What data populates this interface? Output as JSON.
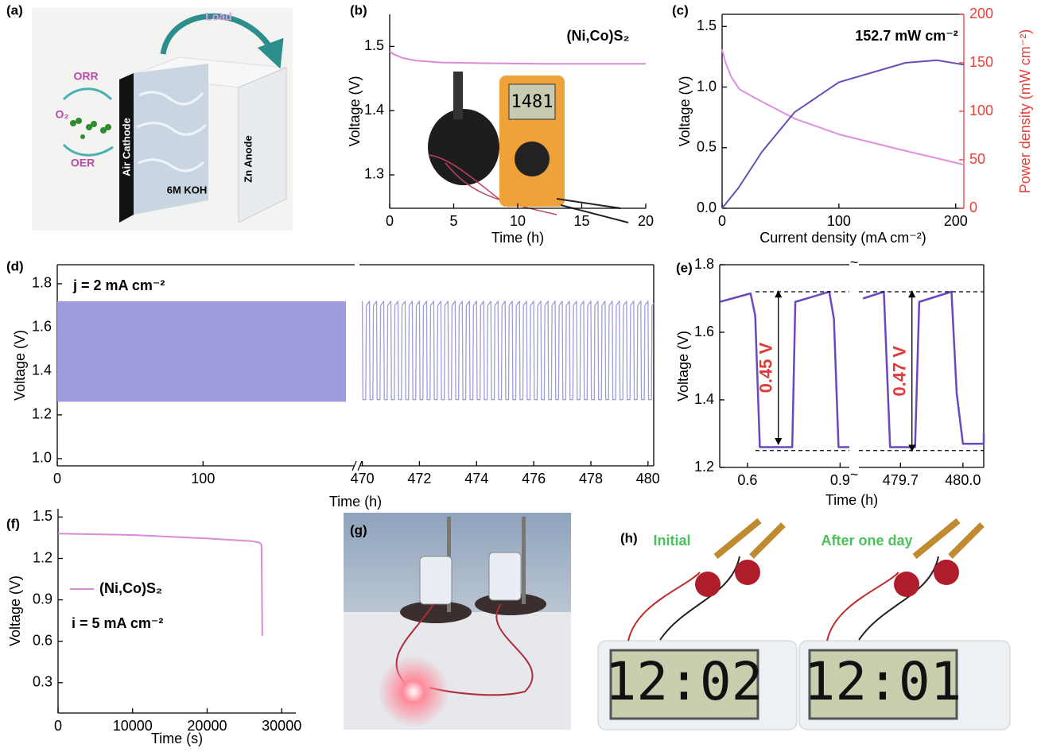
{
  "chart_data": [
    {
      "type": "line",
      "panel_label": "(b)",
      "xlabel": "Time (h)",
      "ylabel": "Voltage (V)",
      "annotation": "(Ni,Co)S₂",
      "inset_text": "1481",
      "xlim": [
        0,
        20
      ],
      "xticks": [
        0,
        5,
        10,
        15,
        20
      ],
      "ylim": [
        1.248,
        1.55
      ],
      "yticks": [
        1.3,
        1.4,
        1.5
      ],
      "series": [
        {
          "color": "#d98bd6",
          "x": [
            0,
            0.3,
            1,
            2,
            4,
            7,
            12,
            20
          ],
          "values": [
            1.492,
            1.488,
            1.482,
            1.478,
            1.475,
            1.474,
            1.473,
            1.473
          ]
        }
      ]
    },
    {
      "type": "line",
      "panel_label": "(c)",
      "xlabel": "Current density (mA cm⁻²)",
      "ylabel": "Voltage (V)",
      "y2label": "Power density (mW cm⁻²)",
      "annotation": "152.7 mW cm⁻²",
      "xlim": [
        0,
        207
      ],
      "xticks": [
        0,
        100,
        200
      ],
      "ylim": [
        0,
        1.6
      ],
      "yticks": [
        {
          "value": 0,
          "label": "0.0"
        },
        0.5,
        {
          "value": 1,
          "label": "1.0"
        },
        1.5
      ],
      "y2lim": [
        0,
        200
      ],
      "y2ticks": [
        0,
        50,
        100,
        150,
        200
      ],
      "y2color": "#e8403a",
      "series": [
        {
          "color": "#e08ee0",
          "x": [
            0,
            3,
            8,
            15,
            30,
            62,
            100,
            150,
            207
          ],
          "values": [
            1.31,
            1.2,
            1.08,
            0.98,
            0.9,
            0.74,
            0.61,
            0.49,
            0.36
          ]
        },
        {
          "color": "#6a4bb8",
          "axis": "y2",
          "x": [
            0,
            14,
            34,
            62,
            100,
            157,
            184,
            207
          ],
          "values": [
            0,
            21,
            58,
            99,
            130,
            150,
            152.7,
            148
          ]
        }
      ]
    },
    {
      "type": "line",
      "panel_label": "(d)",
      "xlabel": "Time (h)",
      "ylabel": "Voltage (V)",
      "annotation": "j = 2 mA cm⁻²",
      "ylim": [
        0.967,
        1.887
      ],
      "yticks": [
        {
          "value": 1,
          "label": "1.0"
        },
        1.2,
        1.4,
        1.6,
        1.8
      ],
      "color": "#9e9cda",
      "segments": [
        {
          "xlim": [
            0,
            204
          ],
          "xticks": [
            0,
            100
          ],
          "band": {
            "x": [
              0,
              198
            ],
            "values": [
              1.26,
              1.72
            ]
          }
        },
        {
          "xlim": [
            469.9,
            480.2
          ],
          "xticks": [
            470,
            472,
            474,
            476,
            478,
            480
          ],
          "x": [
            470,
            470.02,
            470.12,
            470.14,
            470.25,
            470.27,
            470.37,
            470.39,
            470.5,
            470.52,
            470.62,
            470.64,
            470.75,
            470.77,
            470.87,
            470.89,
            471,
            471.02,
            471.12,
            471.14,
            471.25,
            471.27,
            471.37,
            471.39,
            471.5,
            471.52,
            471.62,
            471.64,
            471.75,
            471.77,
            471.87,
            471.89,
            472,
            472.02,
            472.12,
            472.14,
            472.25,
            472.27,
            472.37,
            472.39,
            472.5,
            472.52,
            472.62,
            472.64,
            472.75,
            472.77,
            472.87,
            472.89,
            473,
            473.02,
            473.12,
            473.14,
            473.25,
            473.27,
            473.37,
            473.39,
            473.5,
            473.52,
            473.62,
            473.64,
            473.75,
            473.77,
            473.87,
            473.89,
            474,
            474.02,
            474.12,
            474.14,
            474.25,
            474.27,
            474.37,
            474.39,
            474.5,
            474.52,
            474.62,
            474.64,
            474.75,
            474.77,
            474.87,
            474.89,
            475,
            475.02,
            475.12,
            475.14,
            475.25,
            475.27,
            475.37,
            475.39,
            475.5,
            475.52,
            475.62,
            475.64,
            475.75,
            475.77,
            475.87,
            475.89,
            476,
            476.02,
            476.12,
            476.14,
            476.25,
            476.27,
            476.37,
            476.39,
            476.5,
            476.52,
            476.62,
            476.64,
            476.75,
            476.77,
            476.87,
            476.89,
            477,
            477.02,
            477.12,
            477.14,
            477.25,
            477.27,
            477.37,
            477.39,
            477.5,
            477.52,
            477.62,
            477.64,
            477.75,
            477.77,
            477.87,
            477.89,
            478,
            478.02,
            478.12,
            478.14,
            478.25,
            478.27,
            478.37,
            478.39,
            478.5,
            478.52,
            478.62,
            478.64,
            478.75,
            478.77,
            478.87,
            478.89,
            479,
            479.02,
            479.12,
            479.14,
            479.25,
            479.27,
            479.37,
            479.39,
            479.5,
            479.52,
            479.62,
            479.64,
            479.75,
            479.77,
            479.87,
            479.89,
            480,
            480.02,
            480.12,
            480.14,
            480.2
          ],
          "values": [
            1.72,
            1.27,
            1.27,
            1.7,
            1.72,
            1.27,
            1.27,
            1.7,
            1.72,
            1.27,
            1.27,
            1.7,
            1.72,
            1.27,
            1.27,
            1.7,
            1.72,
            1.27,
            1.27,
            1.7,
            1.72,
            1.27,
            1.27,
            1.7,
            1.72,
            1.27,
            1.27,
            1.7,
            1.72,
            1.27,
            1.27,
            1.7,
            1.72,
            1.27,
            1.27,
            1.7,
            1.72,
            1.27,
            1.27,
            1.7,
            1.72,
            1.27,
            1.27,
            1.7,
            1.72,
            1.27,
            1.27,
            1.7,
            1.72,
            1.27,
            1.27,
            1.7,
            1.72,
            1.27,
            1.27,
            1.7,
            1.72,
            1.27,
            1.27,
            1.7,
            1.72,
            1.27,
            1.27,
            1.7,
            1.72,
            1.27,
            1.27,
            1.7,
            1.72,
            1.27,
            1.27,
            1.7,
            1.72,
            1.27,
            1.27,
            1.7,
            1.72,
            1.27,
            1.27,
            1.7,
            1.72,
            1.27,
            1.27,
            1.7,
            1.72,
            1.27,
            1.27,
            1.7,
            1.72,
            1.27,
            1.27,
            1.7,
            1.72,
            1.27,
            1.27,
            1.7,
            1.72,
            1.27,
            1.27,
            1.7,
            1.72,
            1.27,
            1.27,
            1.7,
            1.72,
            1.27,
            1.27,
            1.7,
            1.72,
            1.27,
            1.27,
            1.7,
            1.72,
            1.27,
            1.27,
            1.7,
            1.72,
            1.27,
            1.27,
            1.7,
            1.72,
            1.27,
            1.27,
            1.7,
            1.72,
            1.27,
            1.27,
            1.7,
            1.72,
            1.27,
            1.27,
            1.7,
            1.72,
            1.27,
            1.27,
            1.7,
            1.72,
            1.27,
            1.27,
            1.7,
            1.72,
            1.27,
            1.27,
            1.7,
            1.72,
            1.27,
            1.27,
            1.7,
            1.72,
            1.27,
            1.27,
            1.7,
            1.72,
            1.27,
            1.27,
            1.7,
            1.72,
            1.27,
            1.27,
            1.7,
            1.72,
            1.27,
            1.27,
            1.7,
            1.71
          ]
        }
      ]
    },
    {
      "type": "line",
      "panel_label": "(e)",
      "xlabel": "Time (h)",
      "ylabel": "Voltage (V)",
      "break_mark": "~",
      "ylim": [
        1.2,
        1.8
      ],
      "yticks": [
        1.2,
        1.4,
        1.6,
        1.8
      ],
      "color": "#6b48c0",
      "dashed_lines": [
        1.72,
        1.25
      ],
      "segments": [
        {
          "xlim": [
            0.51,
            0.93
          ],
          "xticks": [
            0.6,
            0.9
          ],
          "x": [
            0.51,
            0.61,
            0.625,
            0.64,
            0.745,
            0.755,
            0.865,
            0.88,
            0.895,
            0.93
          ],
          "values": [
            1.69,
            1.715,
            1.65,
            1.26,
            1.26,
            1.69,
            1.72,
            1.64,
            1.26,
            1.26
          ],
          "gap": {
            "label": "0.45 V",
            "x": 0.7,
            "values": [
              1.72,
              1.27
            ]
          }
        },
        {
          "xlim": [
            479.5,
            480.1
          ],
          "xticks": [
            479.7,
            {
              "value": 480,
              "label": "480.0"
            }
          ],
          "x": [
            479.52,
            479.62,
            479.65,
            479.77,
            479.79,
            479.945,
            479.97,
            480,
            480.1,
            480.1
          ],
          "values": [
            1.7,
            1.72,
            1.26,
            1.26,
            1.69,
            1.72,
            1.42,
            1.27,
            1.27,
            1.3
          ],
          "gap": {
            "label": "0.47 V",
            "x": 479.755,
            "values": [
              1.72,
              1.25
            ]
          }
        }
      ]
    },
    {
      "type": "line",
      "panel_label": "(f)",
      "xlabel": "Time (s)",
      "ylabel": "Voltage (V)",
      "annotation": "i = 5 mA cm⁻²",
      "xlim": [
        0,
        31900
      ],
      "xticks": [
        0,
        10000,
        20000,
        30000
      ],
      "ylim": [
        0.08,
        1.56
      ],
      "yticks": [
        0.3,
        0.6,
        0.9,
        1.2,
        1.5
      ],
      "series": [
        {
          "name": "(Ni,Co)S₂",
          "color": "#d98bd6",
          "x": [
            0,
            10000,
            20000,
            26000,
            27000,
            27300,
            27400
          ],
          "values": [
            1.38,
            1.37,
            1.345,
            1.325,
            1.315,
            1.3,
            0.64
          ]
        }
      ]
    }
  ],
  "figure": {
    "a": {
      "panel_label": "(a)",
      "load": "Load",
      "orr": "ORR",
      "o2": "O₂",
      "oer": "OER",
      "cathode": "Air Cathode",
      "electrolyte": "6M KOH",
      "anode": "Zn Anode"
    },
    "g": {
      "panel_label": "(g)"
    },
    "h": {
      "panel_label": "(h)",
      "captions": [
        "Initial",
        "After one day"
      ],
      "displays": [
        "12:02",
        "12:01"
      ]
    }
  }
}
